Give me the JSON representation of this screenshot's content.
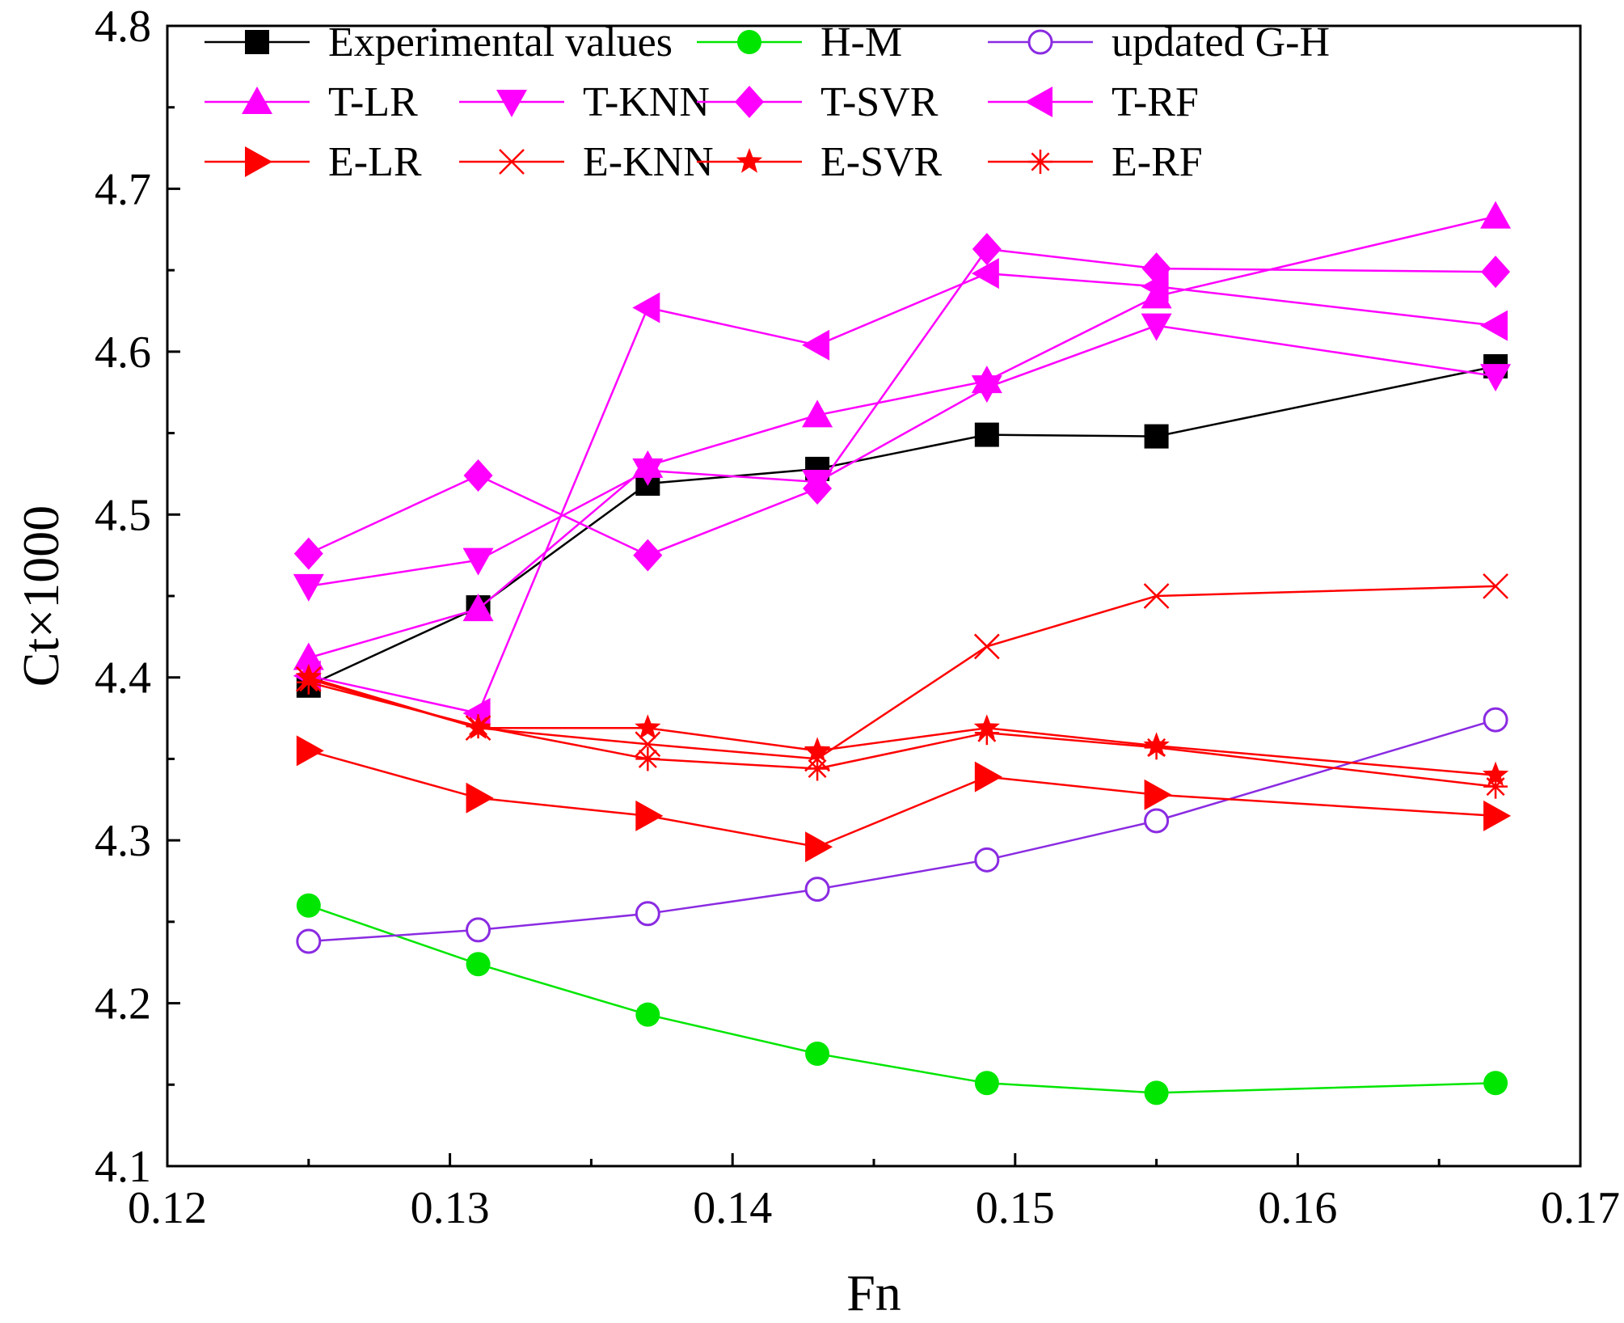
{
  "chart_data": {
    "type": "line",
    "title": "",
    "xlabel": "Fn",
    "ylabel": "Ct×1000",
    "xlim": [
      0.12,
      0.17
    ],
    "ylim": [
      4.1,
      4.8
    ],
    "x_ticks": [
      "0.12",
      "0.13",
      "0.14",
      "0.15",
      "0.16",
      "0.17"
    ],
    "y_ticks": [
      "4.1",
      "4.2",
      "4.3",
      "4.4",
      "4.5",
      "4.6",
      "4.7",
      "4.8"
    ],
    "x": [
      0.125,
      0.131,
      0.137,
      0.143,
      0.149,
      0.155,
      0.167
    ],
    "legend_position": "top",
    "series": [
      {
        "name": "Experimental values",
        "color": "#000000",
        "marker": "square-filled",
        "values": [
          4.395,
          4.443,
          4.519,
          4.528,
          4.549,
          4.548,
          4.591
        ]
      },
      {
        "name": "H-M",
        "color": "#00e600",
        "marker": "circle-filled",
        "values": [
          4.26,
          4.224,
          4.193,
          4.169,
          4.151,
          4.145,
          4.151
        ]
      },
      {
        "name": "updated G-H",
        "color": "#8a2be2",
        "marker": "circle-open",
        "values": [
          4.238,
          4.245,
          4.255,
          4.27,
          4.288,
          4.312,
          4.374
        ]
      },
      {
        "name": "T-LR",
        "color": "#ff00ff",
        "marker": "triangle-up",
        "values": [
          4.412,
          4.442,
          4.53,
          4.561,
          4.582,
          4.634,
          4.683
        ]
      },
      {
        "name": "T-KNN",
        "color": "#ff00ff",
        "marker": "triangle-down",
        "values": [
          4.456,
          4.472,
          4.527,
          4.52,
          4.578,
          4.616,
          4.585
        ]
      },
      {
        "name": "T-SVR",
        "color": "#ff00ff",
        "marker": "diamond",
        "values": [
          4.476,
          4.524,
          4.475,
          4.516,
          4.663,
          4.651,
          4.649
        ]
      },
      {
        "name": "T-RF",
        "color": "#ff00ff",
        "marker": "triangle-left",
        "values": [
          4.401,
          4.378,
          4.627,
          4.604,
          4.648,
          4.64,
          4.616
        ]
      },
      {
        "name": "E-LR",
        "color": "#ff0000",
        "marker": "triangle-right",
        "values": [
          4.355,
          4.326,
          4.315,
          4.296,
          4.339,
          4.328,
          4.315
        ]
      },
      {
        "name": "E-KNN",
        "color": "#ff0000",
        "marker": "x",
        "values": [
          4.399,
          4.369,
          4.359,
          4.35,
          4.419,
          4.45,
          4.456
        ]
      },
      {
        "name": "E-SVR",
        "color": "#ff0000",
        "marker": "star",
        "values": [
          4.4,
          4.369,
          4.369,
          4.355,
          4.369,
          4.358,
          4.34
        ]
      },
      {
        "name": "E-RF",
        "color": "#ff0000",
        "marker": "asterisk",
        "values": [
          4.397,
          4.37,
          4.35,
          4.344,
          4.366,
          4.357,
          4.333
        ]
      }
    ]
  }
}
